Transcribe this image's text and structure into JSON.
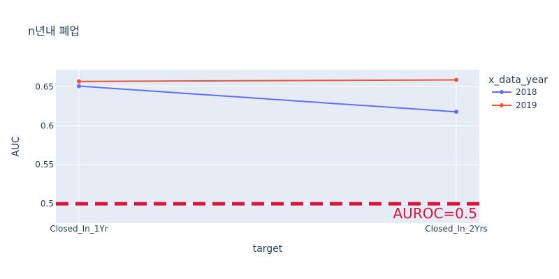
{
  "chart_data": {
    "type": "line",
    "title": "n년내 폐업",
    "xlabel": "target",
    "ylabel": "AUC",
    "categories": [
      "Closed_In_1Yr",
      "Closed_In_2Yrs"
    ],
    "ylim": [
      0.475,
      0.672
    ],
    "yticks": [
      0.5,
      0.55,
      0.6,
      0.65
    ],
    "ytick_labels": [
      "0.5",
      "0.55",
      "0.6",
      "0.65"
    ],
    "grid": true,
    "legend": {
      "title": "x_data_year",
      "position": "right"
    },
    "series": [
      {
        "name": "2018",
        "color": "#636efa",
        "values": [
          0.651,
          0.618
        ]
      },
      {
        "name": "2019",
        "color": "#ef553b",
        "values": [
          0.657,
          0.659
        ]
      }
    ],
    "reference_line": {
      "y": 0.5,
      "label": "AUROC=0.5",
      "color": "#dc143c",
      "style": "dashed"
    }
  }
}
